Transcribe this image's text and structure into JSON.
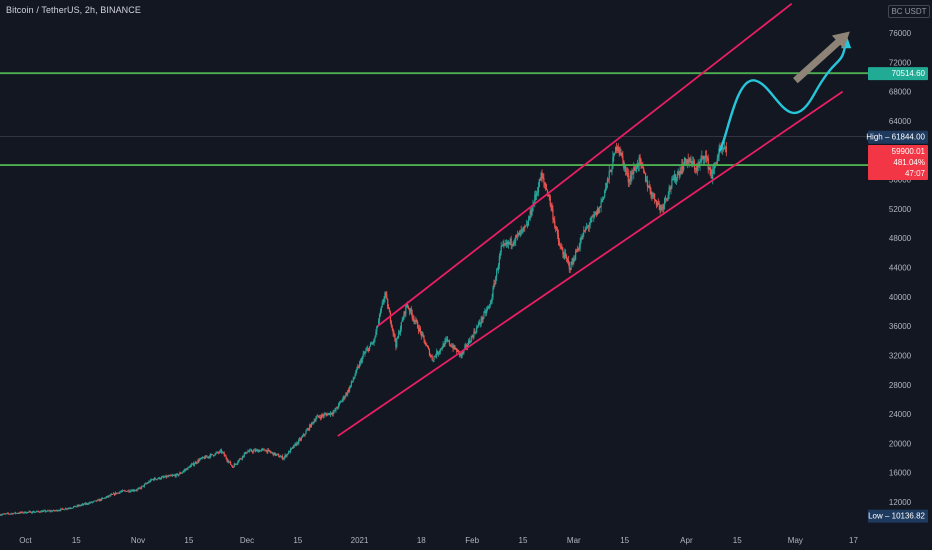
{
  "header": {
    "symbol_title": "Bitcoin / TetherUS, 2h, BINANCE",
    "currency": "BC USDT"
  },
  "colors": {
    "background": "#131722",
    "up_candle": "#26a69a",
    "down_candle": "#ef5350",
    "channel": "#e91e63",
    "horizontal_level": "#4caf50",
    "projection_curve": "#26c6da",
    "projection_arrow": "#8d8377",
    "axis_text": "#b2b5be",
    "price_tag_red": "#f23645",
    "price_tag_green": "#22ab94",
    "price_tag_navy": "#1e3a5f",
    "neutral_tag": "#363a45"
  },
  "chart_data": {
    "type": "candlestick",
    "title": "Bitcoin / TetherUS, 2h, BINANCE",
    "x_axis": {
      "type": "date",
      "range": [
        "2020-09-24",
        "2021-05-21"
      ],
      "tick_labels": [
        {
          "date": "2020-10-01",
          "label": "Oct"
        },
        {
          "date": "2020-10-15",
          "label": "15"
        },
        {
          "date": "2020-11-01",
          "label": "Nov"
        },
        {
          "date": "2020-11-15",
          "label": "15"
        },
        {
          "date": "2020-12-01",
          "label": "Dec"
        },
        {
          "date": "2020-12-15",
          "label": "15"
        },
        {
          "date": "2021-01-01",
          "label": "2021"
        },
        {
          "date": "2021-01-18",
          "label": "18"
        },
        {
          "date": "2021-02-01",
          "label": "Feb"
        },
        {
          "date": "2021-02-15",
          "label": "15"
        },
        {
          "date": "2021-03-01",
          "label": "Mar"
        },
        {
          "date": "2021-03-15",
          "label": "15"
        },
        {
          "date": "2021-04-01",
          "label": "Apr"
        },
        {
          "date": "2021-04-15",
          "label": "15"
        },
        {
          "date": "2021-05-01",
          "label": "May"
        },
        {
          "date": "2021-05-17",
          "label": "17"
        }
      ]
    },
    "y_axis": {
      "range": [
        9000,
        80500
      ],
      "ticks": [
        12000,
        16000,
        20000,
        24000,
        28000,
        32000,
        36000,
        40000,
        44000,
        48000,
        52000,
        56000,
        60000,
        64000,
        68000,
        72000,
        76000
      ]
    },
    "price_path": [
      [
        "2020-09-24",
        10300
      ],
      [
        "2020-10-01",
        10600
      ],
      [
        "2020-10-09",
        10800
      ],
      [
        "2020-10-15",
        11400
      ],
      [
        "2020-10-21",
        12200
      ],
      [
        "2020-10-27",
        13400
      ],
      [
        "2020-11-01",
        13700
      ],
      [
        "2020-11-05",
        15100
      ],
      [
        "2020-11-12",
        15700
      ],
      [
        "2020-11-18",
        17800
      ],
      [
        "2020-11-24",
        18900
      ],
      [
        "2020-11-27",
        16800
      ],
      [
        "2020-12-01",
        18900
      ],
      [
        "2020-12-06",
        19100
      ],
      [
        "2020-12-11",
        18000
      ],
      [
        "2020-12-16",
        20700
      ],
      [
        "2020-12-20",
        23500
      ],
      [
        "2020-12-25",
        24300
      ],
      [
        "2020-12-29",
        27300
      ],
      [
        "2021-01-02",
        32000
      ],
      [
        "2021-01-05",
        34000
      ],
      [
        "2021-01-08",
        40500
      ],
      [
        "2021-01-11",
        33500
      ],
      [
        "2021-01-14",
        39000
      ],
      [
        "2021-01-17",
        36000
      ],
      [
        "2021-01-21",
        31500
      ],
      [
        "2021-01-25",
        34000
      ],
      [
        "2021-01-29",
        32000
      ],
      [
        "2021-02-02",
        35500
      ],
      [
        "2021-02-06",
        39000
      ],
      [
        "2021-02-09",
        46500
      ],
      [
        "2021-02-13",
        48000
      ],
      [
        "2021-02-16",
        49500
      ],
      [
        "2021-02-20",
        56500
      ],
      [
        "2021-02-22",
        54000
      ],
      [
        "2021-02-25",
        47000
      ],
      [
        "2021-02-28",
        44000
      ],
      [
        "2021-03-04",
        49000
      ],
      [
        "2021-03-08",
        52000
      ],
      [
        "2021-03-11",
        57000
      ],
      [
        "2021-03-13",
        61000
      ],
      [
        "2021-03-16",
        56000
      ],
      [
        "2021-03-19",
        58500
      ],
      [
        "2021-03-22",
        54500
      ],
      [
        "2021-03-25",
        52000
      ],
      [
        "2021-03-28",
        55500
      ],
      [
        "2021-04-01",
        58700
      ],
      [
        "2021-04-04",
        57500
      ],
      [
        "2021-04-06",
        59500
      ],
      [
        "2021-04-08",
        56500
      ],
      [
        "2021-04-10",
        59800
      ],
      [
        "2021-04-12",
        59900
      ]
    ],
    "channel": {
      "upper": [
        [
          "2021-01-06",
          36000
        ],
        [
          "2021-04-30",
          80000
        ]
      ],
      "lower": [
        [
          "2020-12-26",
          21000
        ],
        [
          "2021-05-14",
          68000
        ]
      ]
    },
    "horizontal_levels": [
      70514.6,
      57976.39
    ],
    "projection_curve": [
      [
        "2021-04-10",
        59800
      ],
      [
        "2021-04-20",
        69500
      ],
      [
        "2021-05-06",
        67500
      ],
      [
        "2021-05-15",
        75000
      ]
    ],
    "projection_arrow": [
      [
        "2021-05-01",
        69500
      ],
      [
        "2021-05-16",
        76200
      ]
    ],
    "markers": {
      "high": {
        "label": "High",
        "value": "61844.00"
      },
      "low": {
        "label": "Low",
        "value": "10136.82"
      },
      "current": {
        "price": "59900.01",
        "change": "481.04%",
        "countdown": "47:07"
      },
      "level_labels": [
        "70514.60",
        "57976.39"
      ]
    }
  }
}
